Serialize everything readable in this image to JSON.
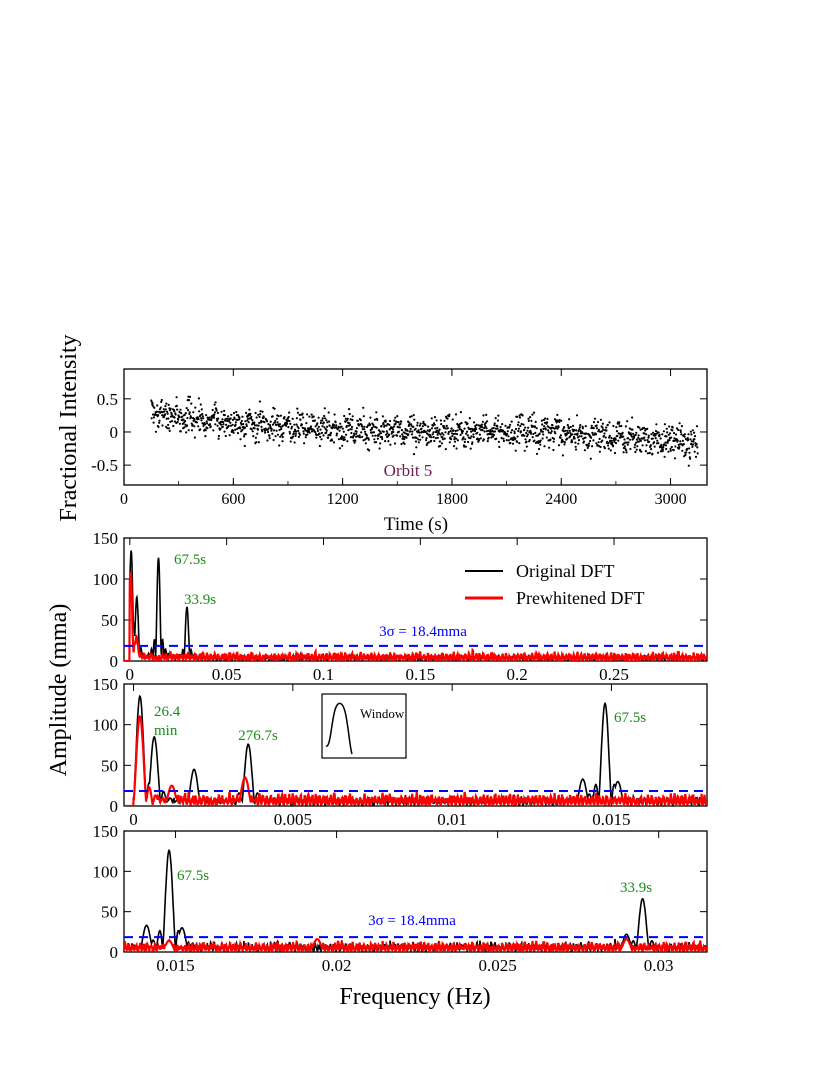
{
  "colors": {
    "original": "#000000",
    "prewhitened": "#ff0000",
    "threshold": "#0000ff",
    "annotation": "#1a8c1a",
    "orbit_label": "#6b1f4f"
  },
  "labels": {
    "ylabel_top": "Fractional Intensity",
    "ylabel_bottom": "Amplitude (mma)"
  },
  "chart_data": [
    {
      "id": "lightcurve",
      "type": "scatter",
      "xlabel": "Time (s)",
      "ylabel": "Fractional Intensity",
      "xlim": [
        0,
        3200
      ],
      "ylim": [
        -0.8,
        0.95
      ],
      "xticks": [
        0,
        600,
        1200,
        1800,
        2400,
        3000
      ],
      "xtick_labels": [
        "0",
        "600",
        "1200",
        "1800",
        "2400",
        "3000"
      ],
      "yticks": [
        0.5,
        0,
        -0.5
      ],
      "ytick_labels": [
        "0.5",
        "0",
        "-0.5"
      ],
      "annotation": "Orbit 5",
      "series": [
        {
          "marker": "dot",
          "sampling_s": 1.8,
          "x_range": [
            150,
            3150
          ],
          "y_trend": [
            [
              150,
              0.28
            ],
            [
              700,
              0.12
            ],
            [
              1500,
              0.0
            ],
            [
              2400,
              -0.02
            ],
            [
              3150,
              -0.18
            ]
          ],
          "y_scatter_sd": 0.16
        }
      ]
    },
    {
      "id": "dft-full",
      "type": "line",
      "xlim": [
        -0.003,
        0.298
      ],
      "ylim": [
        0,
        150
      ],
      "xticks": [
        0,
        0.05,
        0.1,
        0.15,
        0.2,
        0.25
      ],
      "xtick_labels": [
        "0",
        "0.05",
        "0.1",
        "0.15",
        "0.2",
        "0.25"
      ],
      "yticks": [
        0,
        50,
        100,
        150
      ],
      "ytick_labels": [
        "0",
        "50",
        "100",
        "150"
      ],
      "legend": [
        "Original DFT",
        "Prewhitened DFT"
      ],
      "legend_position": "top-right",
      "threshold": 18.4,
      "threshold_label": "3σ = 18.4mma",
      "series": [
        {
          "name": "Original DFT",
          "peaks": [
            [
              0.0007,
              135
            ],
            [
              0.0019,
              45
            ],
            [
              0.0036,
              78
            ],
            [
              0.0148,
              126
            ],
            [
              0.0295,
              66
            ]
          ],
          "noise_level": 5
        },
        {
          "name": "Prewhitened DFT",
          "peaks": [
            [
              0.0004,
              108
            ],
            [
              0.0008,
              40
            ],
            [
              0.0035,
              30
            ]
          ],
          "noise_level": 7
        }
      ],
      "annotations": [
        {
          "text": "67.5s",
          "x": 0.0148,
          "y": 126
        },
        {
          "text": "33.9s",
          "x": 0.0295,
          "y": 66
        }
      ]
    },
    {
      "id": "dft-low",
      "type": "line",
      "xlim": [
        -0.0003,
        0.018
      ],
      "ylim": [
        0,
        150
      ],
      "xticks": [
        0,
        0.005,
        0.01,
        0.015
      ],
      "xtick_labels": [
        "0",
        "0.005",
        "0.01",
        "0.015"
      ],
      "yticks": [
        0,
        50,
        100,
        150
      ],
      "ytick_labels": [
        "0",
        "50",
        "100",
        "150"
      ],
      "threshold": 18.4,
      "series": [
        {
          "name": "Original DFT",
          "peaks": [
            [
              0.0002,
              135
            ],
            [
              0.00065,
              85
            ],
            [
              0.0019,
              45
            ],
            [
              0.0036,
              76
            ],
            [
              0.0141,
              33
            ],
            [
              0.0148,
              126
            ],
            [
              0.0152,
              30
            ]
          ],
          "noise_level": 8
        },
        {
          "name": "Prewhitened DFT",
          "peaks": [
            [
              0.0002,
              110
            ],
            [
              0.0012,
              25
            ],
            [
              0.0035,
              35
            ]
          ],
          "noise_level": 10
        }
      ],
      "annotations": [
        {
          "text": "26.4",
          "x": 0.00063,
          "y": 127
        },
        {
          "text": "min",
          "x": 0.00063,
          "y": 105
        },
        {
          "text": "276.7s",
          "x": 0.0036,
          "y": 92
        },
        {
          "text": "67.5s",
          "x": 0.0148,
          "y": 118
        }
      ],
      "inset_label": "Window"
    },
    {
      "id": "dft-high",
      "type": "line",
      "xlim": [
        0.0134,
        0.0315
      ],
      "ylim": [
        0,
        150
      ],
      "xticks": [
        0.015,
        0.02,
        0.025,
        0.03
      ],
      "xtick_labels": [
        "0.015",
        "0.02",
        "0.025",
        "0.03"
      ],
      "yticks": [
        0,
        50,
        100,
        150
      ],
      "ytick_labels": [
        "0",
        "50",
        "100",
        "150"
      ],
      "xlabel": "Frequency (Hz)",
      "threshold": 18.4,
      "threshold_label": "3σ = 18.4mma",
      "series": [
        {
          "name": "Original DFT",
          "peaks": [
            [
              0.0141,
              33
            ],
            [
              0.0148,
              126
            ],
            [
              0.0152,
              30
            ],
            [
              0.029,
              22
            ],
            [
              0.0295,
              66
            ]
          ],
          "noise_level": 8
        },
        {
          "name": "Prewhitened DFT",
          "peaks": [
            [
              0.0148,
              14
            ],
            [
              0.0194,
              16
            ],
            [
              0.029,
              16
            ]
          ],
          "noise_level": 8
        }
      ],
      "annotations": [
        {
          "text": "67.5s",
          "x": 0.0148,
          "y": 120
        },
        {
          "text": "33.9s",
          "x": 0.0295,
          "y": 70
        }
      ]
    }
  ]
}
